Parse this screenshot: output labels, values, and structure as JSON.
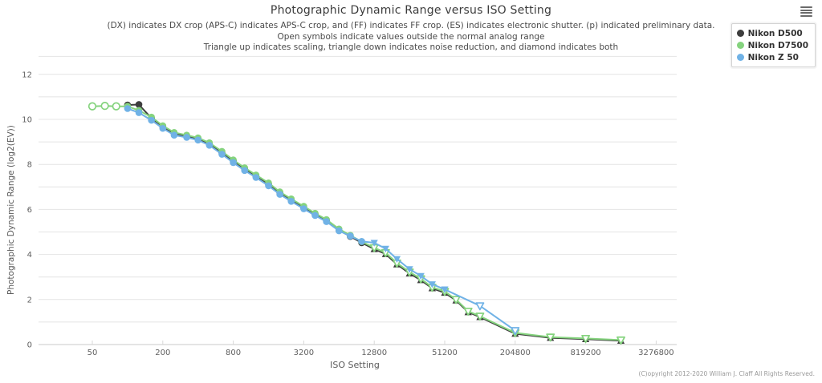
{
  "header": {
    "title": "Photographic Dynamic Range versus ISO Setting",
    "subtitle_lines": [
      "(DX) indicates DX crop (APS-C) indicates APS-C crop, and (FF) indicates FF crop. (ES) indicates electronic shutter. (p) indicated preliminary data.",
      "Open symbols indicate values outside the normal analog range",
      "Triangle up indicates scaling, triangle down indicates noise reduction, and diamond indicates both"
    ],
    "menu_icon": "hamburger-icon"
  },
  "footer": {
    "copyright": "(C)opyright 2012-2020 William J. Claff All Rights Reserved."
  },
  "chart_data": {
    "type": "line",
    "title": "Photographic Dynamic Range versus ISO Setting",
    "xlabel": "ISO Setting",
    "ylabel": "Photographic Dynamic Range (log2(EV))",
    "x_scale": "log4",
    "x_ticks": [
      50,
      200,
      800,
      3200,
      12800,
      51200,
      204800,
      819200,
      3276800
    ],
    "y_tick_labels": [
      0,
      2,
      4,
      6,
      8,
      10,
      12
    ],
    "y_gridline_step": 1,
    "ylim": [
      0,
      12.8
    ],
    "grid": true,
    "legend_position": "top-right",
    "marker_codes": {
      "c": "circle-filled",
      "o": "circle-open",
      "u": "triangle-up-filled",
      "v": "triangle-down-filled",
      "w": "triangle-down-open"
    },
    "series": [
      {
        "name": "Nikon D500",
        "color": "#3d3d3d",
        "points": [
          [
            100,
            10.64,
            "c"
          ],
          [
            125,
            10.66,
            "c"
          ],
          [
            160,
            10.05,
            "c"
          ],
          [
            200,
            9.68,
            "c"
          ],
          [
            250,
            9.38,
            "c"
          ],
          [
            320,
            9.26,
            "c"
          ],
          [
            400,
            9.14,
            "c"
          ],
          [
            500,
            8.92,
            "c"
          ],
          [
            640,
            8.52,
            "c"
          ],
          [
            800,
            8.15,
            "c"
          ],
          [
            1000,
            7.8,
            "c"
          ],
          [
            1250,
            7.48,
            "c"
          ],
          [
            1600,
            7.12,
            "c"
          ],
          [
            2000,
            6.73,
            "c"
          ],
          [
            2500,
            6.42,
            "c"
          ],
          [
            3200,
            6.08,
            "c"
          ],
          [
            4000,
            5.78,
            "c"
          ],
          [
            5000,
            5.5,
            "c"
          ],
          [
            6400,
            5.08,
            "c"
          ],
          [
            8000,
            4.8,
            "c"
          ],
          [
            10000,
            4.52,
            "c"
          ],
          [
            12800,
            4.24,
            "u"
          ],
          [
            16000,
            4.02,
            "u"
          ],
          [
            20000,
            3.56,
            "u"
          ],
          [
            25600,
            3.16,
            "u"
          ],
          [
            32000,
            2.86,
            "u"
          ],
          [
            40000,
            2.5,
            "u"
          ],
          [
            51200,
            2.3,
            "u"
          ],
          [
            64000,
            1.96,
            "u"
          ],
          [
            81200,
            1.44,
            "u"
          ],
          [
            102400,
            1.22,
            "u"
          ],
          [
            204800,
            0.48,
            "u"
          ],
          [
            409600,
            0.3,
            "u"
          ],
          [
            819200,
            0.24,
            "u"
          ],
          [
            1638400,
            0.17,
            "u"
          ]
        ]
      },
      {
        "name": "Nikon D7500",
        "color": "#85d37e",
        "points": [
          [
            50,
            10.58,
            "o"
          ],
          [
            64,
            10.6,
            "o"
          ],
          [
            80,
            10.58,
            "o"
          ],
          [
            100,
            10.58,
            "c"
          ],
          [
            125,
            10.4,
            "c"
          ],
          [
            160,
            10.1,
            "c"
          ],
          [
            200,
            9.72,
            "c"
          ],
          [
            250,
            9.42,
            "c"
          ],
          [
            320,
            9.3,
            "c"
          ],
          [
            400,
            9.18,
            "c"
          ],
          [
            500,
            8.96,
            "c"
          ],
          [
            640,
            8.58,
            "c"
          ],
          [
            800,
            8.2,
            "c"
          ],
          [
            1000,
            7.85,
            "c"
          ],
          [
            1250,
            7.53,
            "c"
          ],
          [
            1600,
            7.18,
            "c"
          ],
          [
            2000,
            6.78,
            "c"
          ],
          [
            2500,
            6.47,
            "c"
          ],
          [
            3200,
            6.14,
            "c"
          ],
          [
            4000,
            5.83,
            "c"
          ],
          [
            5000,
            5.55,
            "c"
          ],
          [
            6400,
            5.13,
            "c"
          ],
          [
            8000,
            4.85,
            "c"
          ],
          [
            10000,
            4.57,
            "c"
          ],
          [
            12800,
            4.3,
            "w"
          ],
          [
            16000,
            4.08,
            "w"
          ],
          [
            20000,
            3.62,
            "w"
          ],
          [
            25600,
            3.22,
            "w"
          ],
          [
            32000,
            2.92,
            "w"
          ],
          [
            40000,
            2.54,
            "w"
          ],
          [
            51200,
            2.36,
            "w"
          ],
          [
            64000,
            2.0,
            "w"
          ],
          [
            81200,
            1.48,
            "w"
          ],
          [
            102400,
            1.26,
            "w"
          ],
          [
            204800,
            0.52,
            "w"
          ],
          [
            409600,
            0.33,
            "w"
          ],
          [
            819200,
            0.27,
            "w"
          ],
          [
            1638400,
            0.2,
            "w"
          ]
        ]
      },
      {
        "name": "Nikon Z 50",
        "color": "#70b2e6",
        "points": [
          [
            100,
            10.48,
            "c"
          ],
          [
            125,
            10.3,
            "c"
          ],
          [
            160,
            9.96,
            "c"
          ],
          [
            200,
            9.6,
            "c"
          ],
          [
            250,
            9.3,
            "c"
          ],
          [
            320,
            9.2,
            "c"
          ],
          [
            400,
            9.08,
            "c"
          ],
          [
            500,
            8.85,
            "c"
          ],
          [
            640,
            8.45,
            "c"
          ],
          [
            800,
            8.08,
            "c"
          ],
          [
            1000,
            7.73,
            "c"
          ],
          [
            1250,
            7.42,
            "c"
          ],
          [
            1600,
            7.05,
            "c"
          ],
          [
            2000,
            6.67,
            "c"
          ],
          [
            2500,
            6.36,
            "c"
          ],
          [
            3200,
            6.03,
            "c"
          ],
          [
            4000,
            5.73,
            "c"
          ],
          [
            5000,
            5.46,
            "c"
          ],
          [
            6400,
            5.05,
            "c"
          ],
          [
            8000,
            4.82,
            "c"
          ],
          [
            10000,
            4.58,
            "c"
          ],
          [
            12800,
            4.52,
            "v"
          ],
          [
            16000,
            4.26,
            "v"
          ],
          [
            20000,
            3.8,
            "v"
          ],
          [
            25600,
            3.35,
            "v"
          ],
          [
            32000,
            3.05,
            "v"
          ],
          [
            40000,
            2.68,
            "v"
          ],
          [
            51200,
            2.45,
            "v"
          ],
          [
            102400,
            1.72,
            "w"
          ],
          [
            204800,
            0.62,
            "w"
          ]
        ]
      }
    ]
  }
}
